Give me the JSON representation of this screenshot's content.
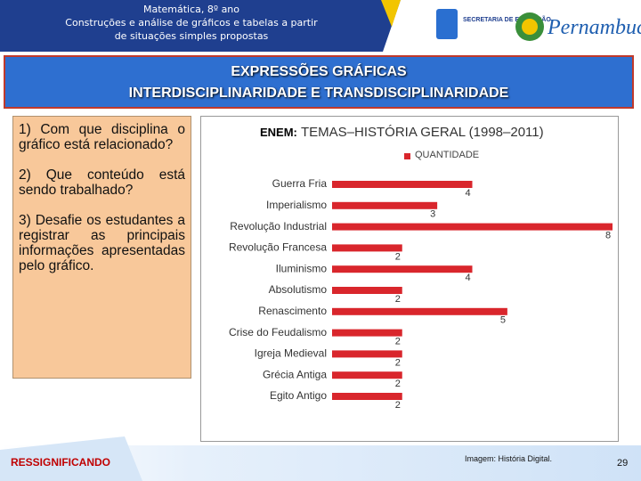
{
  "header": {
    "lines": [
      "Matemática, 8º ano",
      "Construções e análise de gráficos e tabelas a partir",
      "de situações simples propostas"
    ],
    "secretaria": "SECRETARIA DE EDUCAÇÃO",
    "state": "Pernambuco"
  },
  "banner": {
    "title": "EXPRESSÕES GRÁFICAS",
    "subtitle": "INTERDISCIPLINARIDADE E TRANSDISCIPLINARIDADE"
  },
  "questions": [
    "1) Com que disciplina o gráfico está relacionado?",
    "2) Que conteúdo está sendo trabalhado?",
    "3) Desafie os estudantes a registrar as principais informações apresentadas pelo gráfico."
  ],
  "chart_data": {
    "type": "barh",
    "prefix": "ENEM:",
    "title": "TEMAS–HISTÓRIA GERAL (1998–2011)",
    "series_name": "QUANTIDADE",
    "color": "#d9262c",
    "categories": [
      "Guerra Fria",
      "Imperialismo",
      "Revolução Industrial",
      "Revolução Francesa",
      "Iluminismo",
      "Absolutismo",
      "Renascimento",
      "Crise do Feudalismo",
      "Igreja Medieval",
      "Grécia Antiga",
      "Egito Antigo"
    ],
    "values": [
      4,
      3,
      8,
      2,
      4,
      2,
      5,
      2,
      2,
      2,
      2
    ]
  },
  "footer": {
    "label": "RESSIGNIFICANDO",
    "credit": "Imagem: História Digital.",
    "page": "29"
  }
}
